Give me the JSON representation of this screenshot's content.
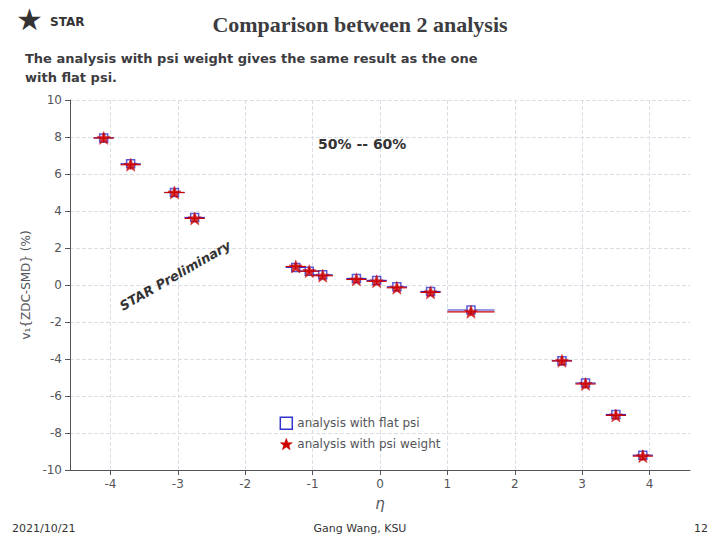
{
  "chart_data": {
    "type": "scatter",
    "title": "Comparison between 2 analysis",
    "subtitle": "The analysis with psi weight gives the same result as the one\nwith flat psi.",
    "logo": [
      "★",
      "STAR"
    ],
    "x_label": "η",
    "y_label": "v₁{ZDC-SMD} (%)",
    "annotations": [
      "50% -- 60%",
      "STAR Preliminary"
    ],
    "footer": [
      "2021/10/21",
      "Gang Wang, KSU",
      "12"
    ],
    "x": [
      -4.1,
      -3.7,
      -3.05,
      -2.75,
      -1.25,
      -1.05,
      -0.85,
      -0.35,
      -0.05,
      0.25,
      0.75,
      1.35,
      2.7,
      3.05,
      3.5,
      3.9
    ],
    "series": [
      {
        "name": "analysis with flat psi",
        "color": "#3333cc",
        "marker": "square",
        "values": [
          7.95,
          6.55,
          5.0,
          3.65,
          0.95,
          0.75,
          0.55,
          0.35,
          0.25,
          -0.1,
          -0.35,
          -1.35,
          -4.1,
          -5.3,
          -7.0,
          -9.2
        ],
        "xerr": [
          0.15,
          0.15,
          0.15,
          0.15,
          0.15,
          0.15,
          0.15,
          0.15,
          0.15,
          0.15,
          0.15,
          0.35,
          0.15,
          0.15,
          0.15,
          0.15
        ],
        "yerr": [
          0.25,
          0.25,
          0.2,
          0.2,
          0.15,
          0.15,
          0.15,
          0.15,
          0.15,
          0.15,
          0.15,
          0.2,
          0.25,
          0.25,
          0.25,
          0.25
        ]
      },
      {
        "name": "analysis with psi weight",
        "color": "#cc0000",
        "marker": "star",
        "values": [
          7.95,
          6.5,
          5.0,
          3.6,
          1.0,
          0.75,
          0.5,
          0.3,
          0.2,
          -0.15,
          -0.4,
          -1.45,
          -4.1,
          -5.35,
          -7.05,
          -9.25
        ],
        "xerr": [
          0.15,
          0.15,
          0.15,
          0.15,
          0.15,
          0.15,
          0.15,
          0.15,
          0.15,
          0.15,
          0.15,
          0.35,
          0.15,
          0.15,
          0.15,
          0.15
        ],
        "yerr": [
          0.25,
          0.25,
          0.2,
          0.2,
          0.15,
          0.15,
          0.15,
          0.15,
          0.15,
          0.15,
          0.15,
          0.2,
          0.25,
          0.25,
          0.25,
          0.25
        ]
      }
    ],
    "xlim": [
      -4.6,
      4.6
    ],
    "xticks": [
      -4,
      -3,
      -2,
      -1,
      0,
      1,
      2,
      3,
      4
    ],
    "ylim": [
      -10,
      10
    ],
    "yticks": [
      -10,
      -8,
      -6,
      -4,
      -2,
      0,
      2,
      4,
      6,
      8,
      10
    ],
    "grid": true,
    "legend": "bottom"
  }
}
